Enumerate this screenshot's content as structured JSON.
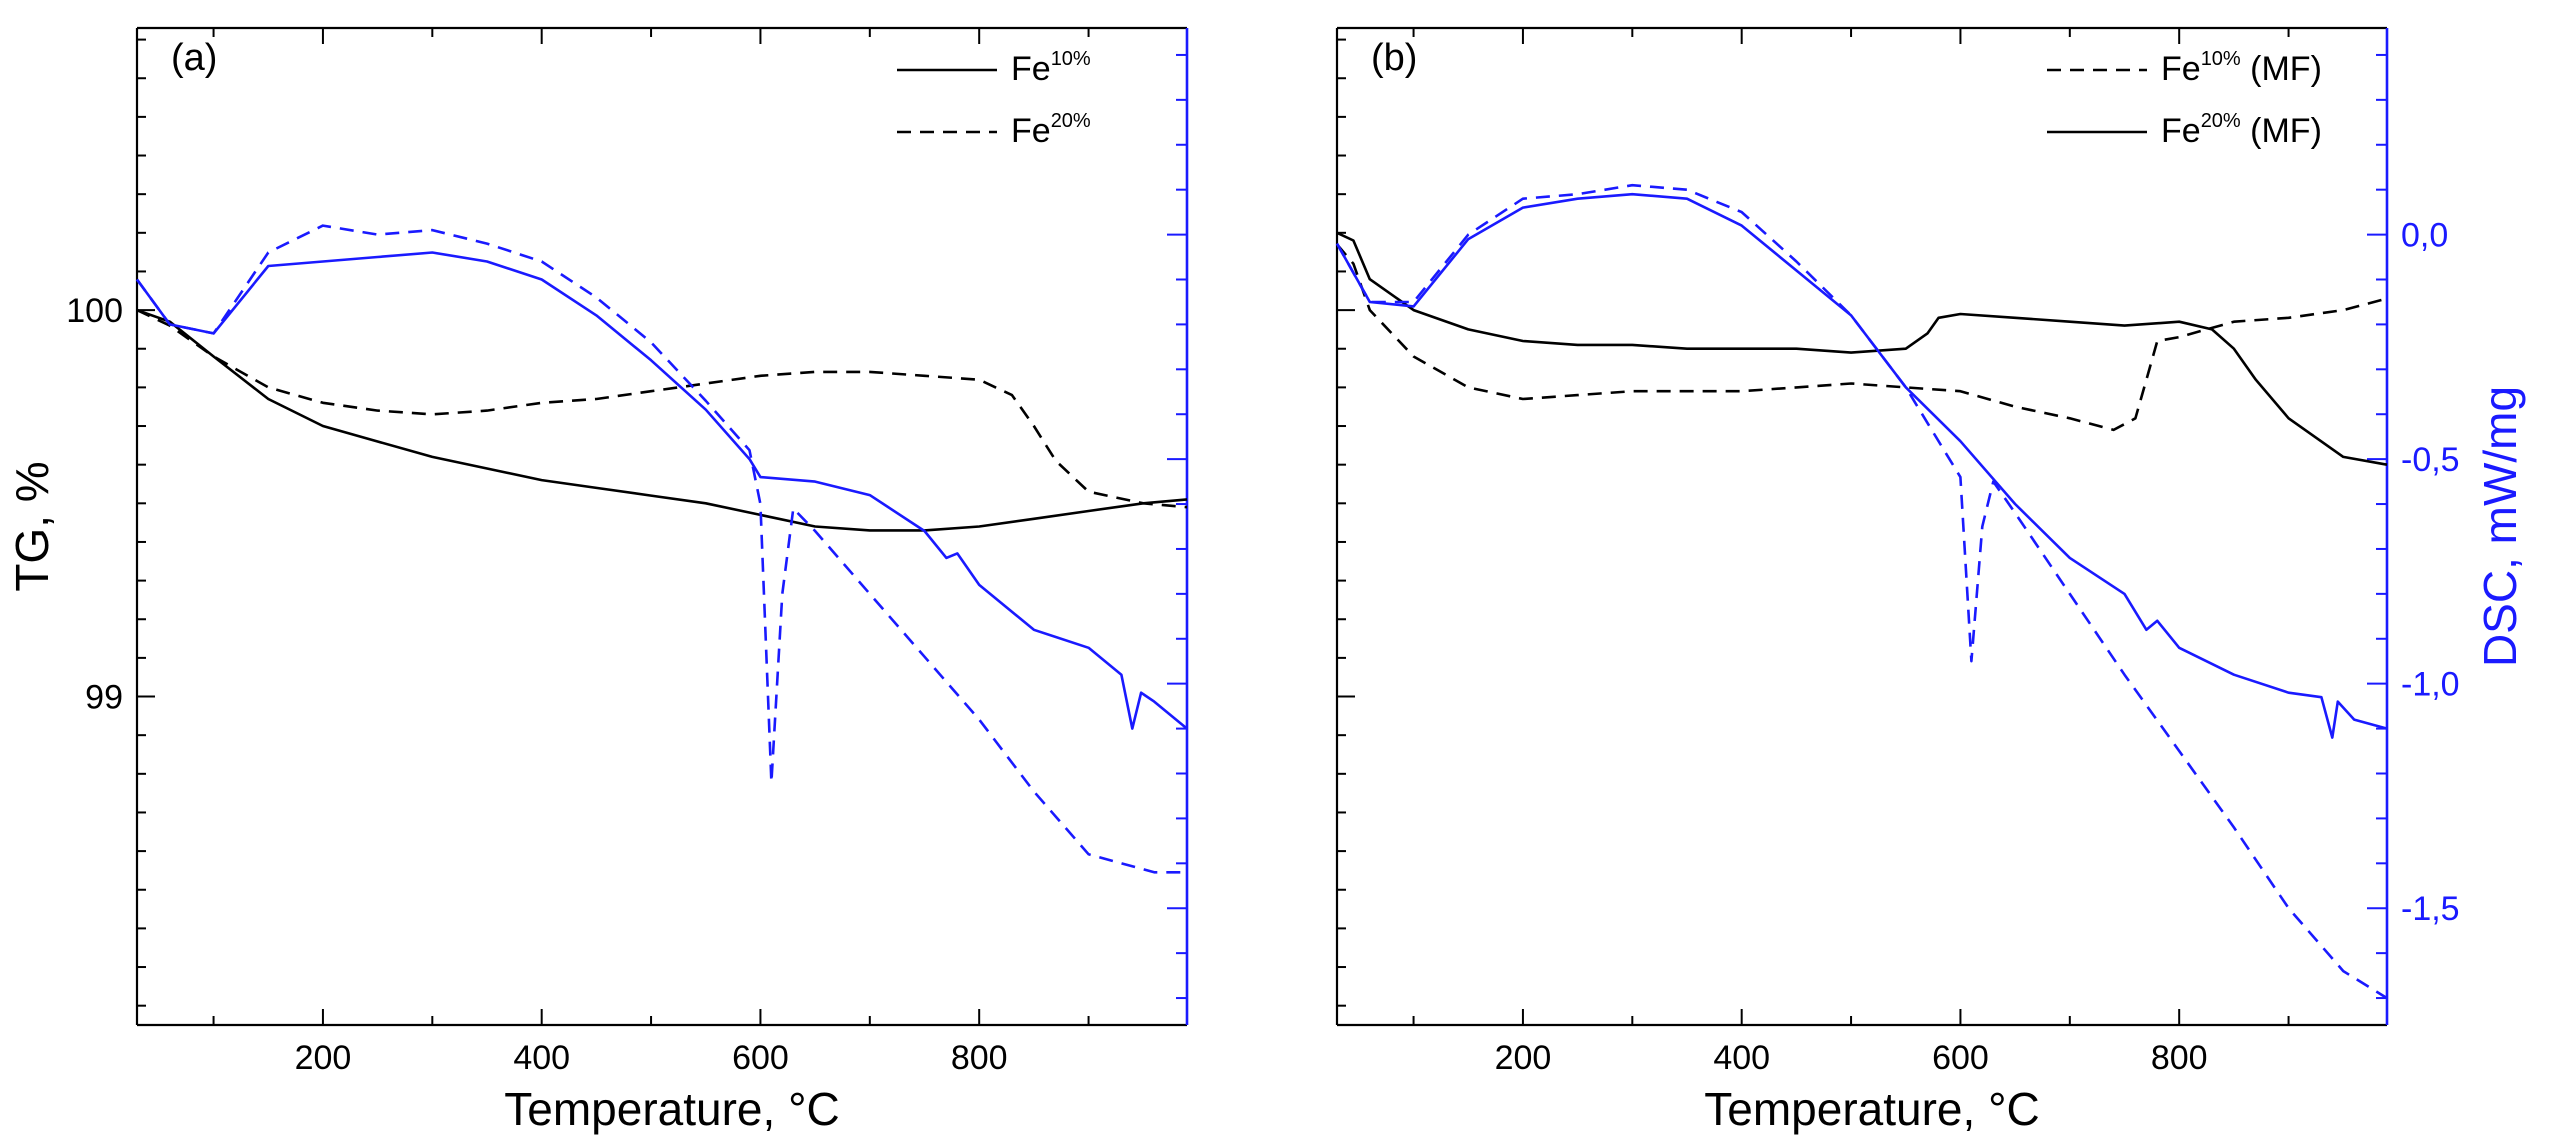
{
  "colors": {
    "tg": "#000000",
    "dsc": "#1a1aff",
    "frame": "#000000"
  },
  "chart_data": [
    {
      "type": "line",
      "panel_label": "(a)",
      "xlabel": "Temperature, °C",
      "xlim": [
        30,
        990
      ],
      "xticks": [
        200,
        400,
        600,
        800
      ],
      "ylabel_left": "TG, %",
      "ylim_left": [
        98.15,
        100.73
      ],
      "yticks_left": [
        99,
        100
      ],
      "ylabel_right": "",
      "ylim_right": [
        -1.76,
        0.46
      ],
      "yticks_right": [],
      "legend": {
        "placement": "top-right",
        "entries": [
          {
            "base": "Fe",
            "sup": "10%",
            "suffix": "",
            "dash": "solid"
          },
          {
            "base": "Fe",
            "sup": "20%",
            "suffix": "",
            "dash": "dashed"
          }
        ]
      },
      "series": [
        {
          "name": "Fe10%",
          "quantity": "TG",
          "axis": "left",
          "dash": "solid",
          "x": [
            30,
            60,
            100,
            150,
            200,
            250,
            300,
            350,
            400,
            450,
            500,
            550,
            600,
            650,
            700,
            750,
            800,
            850,
            900,
            950,
            990
          ],
          "y": [
            100.0,
            99.97,
            99.88,
            99.77,
            99.7,
            99.66,
            99.62,
            99.59,
            99.56,
            99.54,
            99.52,
            99.5,
            99.47,
            99.44,
            99.43,
            99.43,
            99.44,
            99.46,
            99.48,
            99.5,
            99.51
          ]
        },
        {
          "name": "Fe20%",
          "quantity": "TG",
          "axis": "left",
          "dash": "dashed",
          "x": [
            30,
            60,
            100,
            150,
            200,
            250,
            300,
            350,
            400,
            450,
            500,
            550,
            600,
            650,
            700,
            750,
            800,
            830,
            850,
            870,
            900,
            950,
            990
          ],
          "y": [
            100.0,
            99.96,
            99.88,
            99.8,
            99.76,
            99.74,
            99.73,
            99.74,
            99.76,
            99.77,
            99.79,
            99.81,
            99.83,
            99.84,
            99.84,
            99.83,
            99.82,
            99.78,
            99.7,
            99.61,
            99.53,
            99.5,
            99.49
          ]
        },
        {
          "name": "Fe10%",
          "quantity": "DSC",
          "axis": "right",
          "dash": "solid",
          "x": [
            30,
            60,
            100,
            150,
            200,
            250,
            300,
            350,
            400,
            450,
            500,
            550,
            590,
            600,
            650,
            700,
            750,
            770,
            780,
            800,
            850,
            900,
            930,
            940,
            948,
            960,
            990
          ],
          "y": [
            -0.1,
            -0.2,
            -0.22,
            -0.07,
            -0.06,
            -0.05,
            -0.04,
            -0.06,
            -0.1,
            -0.18,
            -0.28,
            -0.39,
            -0.5,
            -0.54,
            -0.55,
            -0.58,
            -0.66,
            -0.72,
            -0.71,
            -0.78,
            -0.88,
            -0.92,
            -0.98,
            -1.1,
            -1.02,
            -1.04,
            -1.1
          ]
        },
        {
          "name": "Fe20%",
          "quantity": "DSC",
          "axis": "right",
          "dash": "dashed",
          "x": [
            30,
            60,
            100,
            150,
            200,
            250,
            300,
            350,
            400,
            450,
            500,
            550,
            590,
            600,
            610,
            620,
            630,
            650,
            700,
            750,
            800,
            850,
            900,
            930,
            960,
            990
          ],
          "y": [
            -0.1,
            -0.2,
            -0.22,
            -0.04,
            0.02,
            0.0,
            0.01,
            -0.02,
            -0.06,
            -0.14,
            -0.24,
            -0.37,
            -0.48,
            -0.6,
            -1.22,
            -0.8,
            -0.61,
            -0.66,
            -0.8,
            -0.94,
            -1.08,
            -1.24,
            -1.38,
            -1.4,
            -1.42,
            -1.42
          ]
        }
      ]
    },
    {
      "type": "line",
      "panel_label": "(b)",
      "xlabel": "Temperature, °C",
      "xlim": [
        30,
        990
      ],
      "xticks": [
        200,
        400,
        600,
        800
      ],
      "ylabel_left": "",
      "ylim_left": [
        98.15,
        100.73
      ],
      "yticks_left": [],
      "ylabel_right": "DSC, mW/mg",
      "ylim_right": [
        -1.76,
        0.46
      ],
      "yticks_right": [
        {
          "value": 0.0,
          "label": "0,0"
        },
        {
          "value": -0.5,
          "label": "-0,5"
        },
        {
          "value": -1.0,
          "label": "-1,0"
        },
        {
          "value": -1.5,
          "label": "-1,5"
        }
      ],
      "legend": {
        "placement": "top-right",
        "entries": [
          {
            "base": "Fe",
            "sup": "10%",
            "suffix": " (MF)",
            "dash": "dashed"
          },
          {
            "base": "Fe",
            "sup": "20%",
            "suffix": " (MF)",
            "dash": "solid"
          }
        ]
      },
      "series": [
        {
          "name": "Fe10% (MF)",
          "quantity": "TG",
          "axis": "left",
          "dash": "dashed",
          "x": [
            30,
            45,
            60,
            100,
            150,
            200,
            250,
            300,
            350,
            400,
            450,
            500,
            550,
            600,
            650,
            700,
            740,
            760,
            770,
            780,
            800,
            850,
            900,
            950,
            990
          ],
          "y": [
            100.17,
            100.12,
            100.0,
            99.88,
            99.8,
            99.77,
            99.78,
            99.79,
            99.79,
            99.79,
            99.8,
            99.81,
            99.8,
            99.79,
            99.75,
            99.72,
            99.69,
            99.72,
            99.82,
            99.92,
            99.93,
            99.97,
            99.98,
            100.0,
            100.03
          ]
        },
        {
          "name": "Fe20% (MF)",
          "quantity": "TG",
          "axis": "left",
          "dash": "solid",
          "x": [
            30,
            45,
            60,
            100,
            150,
            200,
            250,
            300,
            350,
            400,
            450,
            500,
            550,
            570,
            580,
            600,
            650,
            700,
            750,
            800,
            830,
            850,
            870,
            900,
            950,
            990
          ],
          "y": [
            100.2,
            100.18,
            100.08,
            100.0,
            99.95,
            99.92,
            99.91,
            99.91,
            99.9,
            99.9,
            99.9,
            99.89,
            99.9,
            99.94,
            99.98,
            99.99,
            99.98,
            99.97,
            99.96,
            99.97,
            99.95,
            99.9,
            99.82,
            99.72,
            99.62,
            99.6
          ]
        },
        {
          "name": "Fe20% (MF)",
          "quantity": "DSC",
          "axis": "right",
          "dash": "solid",
          "x": [
            30,
            60,
            100,
            150,
            200,
            250,
            300,
            350,
            400,
            450,
            500,
            550,
            600,
            650,
            700,
            750,
            770,
            780,
            800,
            850,
            900,
            930,
            940,
            945,
            960,
            990
          ],
          "y": [
            -0.02,
            -0.15,
            -0.16,
            -0.01,
            0.06,
            0.08,
            0.09,
            0.08,
            0.02,
            -0.08,
            -0.18,
            -0.34,
            -0.46,
            -0.6,
            -0.72,
            -0.8,
            -0.88,
            -0.86,
            -0.92,
            -0.98,
            -1.02,
            -1.03,
            -1.12,
            -1.04,
            -1.08,
            -1.1
          ]
        },
        {
          "name": "Fe10% (MF)",
          "quantity": "DSC",
          "axis": "right",
          "dash": "dashed",
          "x": [
            30,
            60,
            100,
            150,
            200,
            250,
            300,
            350,
            400,
            450,
            500,
            550,
            600,
            610,
            620,
            630,
            650,
            700,
            750,
            800,
            850,
            900,
            950,
            990
          ],
          "y": [
            -0.02,
            -0.15,
            -0.15,
            0.0,
            0.08,
            0.09,
            0.11,
            0.1,
            0.05,
            -0.06,
            -0.18,
            -0.34,
            -0.54,
            -0.95,
            -0.65,
            -0.55,
            -0.62,
            -0.8,
            -0.98,
            -1.15,
            -1.32,
            -1.5,
            -1.64,
            -1.7
          ]
        }
      ]
    }
  ]
}
